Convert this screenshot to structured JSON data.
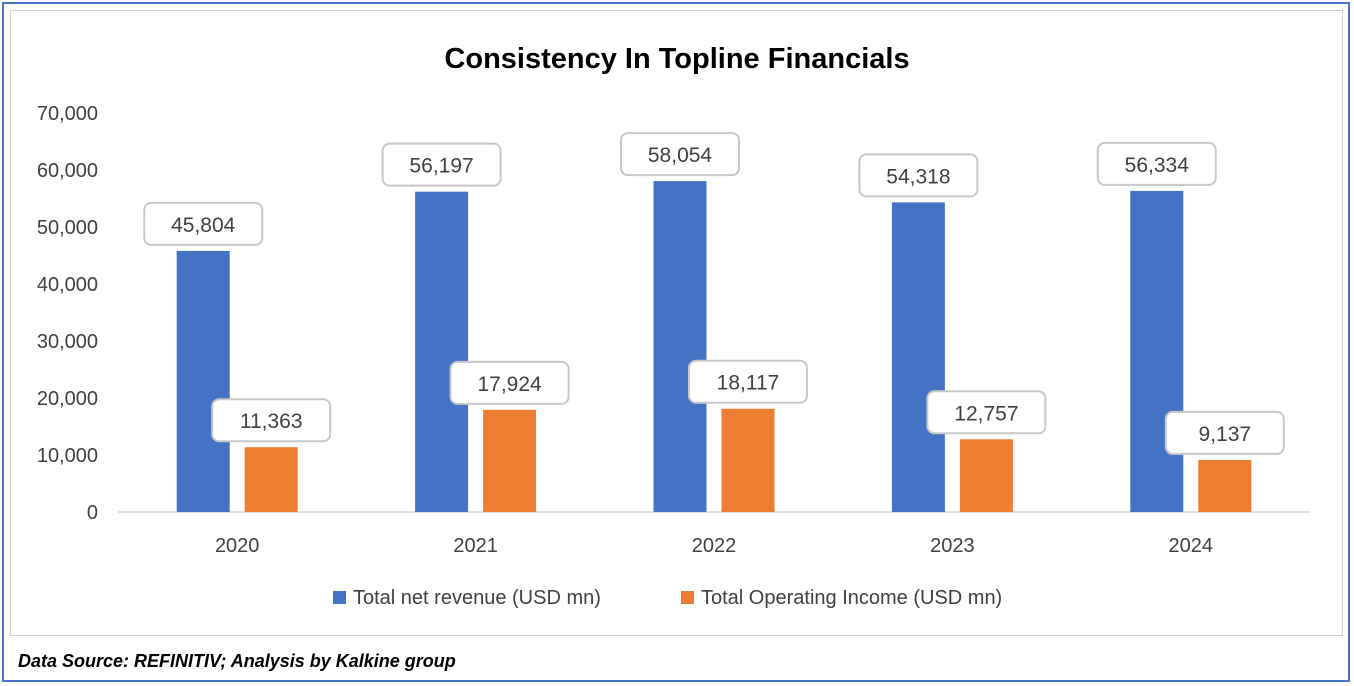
{
  "chart_data": {
    "type": "bar",
    "title": "Consistency In Topline Financials",
    "xlabel": "",
    "ylabel": "",
    "categories": [
      "2020",
      "2021",
      "2022",
      "2023",
      "2024"
    ],
    "series": [
      {
        "name": "Total net revenue (USD mn)",
        "color": "#4472c4",
        "values": [
          45804,
          56197,
          58054,
          54318,
          56334
        ],
        "labels": [
          "45,804",
          "56,197",
          "58,054",
          "54,318",
          "56,334"
        ]
      },
      {
        "name": "Total Operating Income (USD mn)",
        "color": "#ed7d31",
        "values": [
          11363,
          17924,
          18117,
          12757,
          9137
        ],
        "labels": [
          "11,363",
          "17,924",
          "18,117",
          "12,757",
          "9,137"
        ]
      }
    ],
    "ylim": [
      0,
      70000
    ],
    "yticks": [
      0,
      10000,
      20000,
      30000,
      40000,
      50000,
      60000,
      70000
    ],
    "ytick_labels": [
      "0",
      "10,000",
      "20,000",
      "30,000",
      "40,000",
      "50,000",
      "60,000",
      "70,000"
    ],
    "grid": false,
    "legend_position": "bottom"
  },
  "footer": {
    "source": "Data Source: REFINITIV; Analysis by Kalkine group"
  }
}
